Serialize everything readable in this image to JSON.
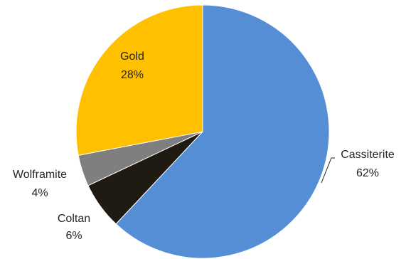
{
  "chart_data": {
    "type": "pie",
    "title": "",
    "start_angle_deg": 0,
    "direction": "clockwise",
    "legend": "none",
    "slices": [
      {
        "category": "Cassiterite",
        "value": 62,
        "value_label": "62%",
        "color": "#558ed5"
      },
      {
        "category": "Coltan",
        "value": 6,
        "value_label": "6%",
        "color": "#1f1b12"
      },
      {
        "category": "Wolframite",
        "value": 4,
        "value_label": "4%",
        "color": "#7f7f7f"
      },
      {
        "category": "Gold",
        "value": 28,
        "value_label": "28%",
        "color": "#ffc000"
      }
    ]
  }
}
